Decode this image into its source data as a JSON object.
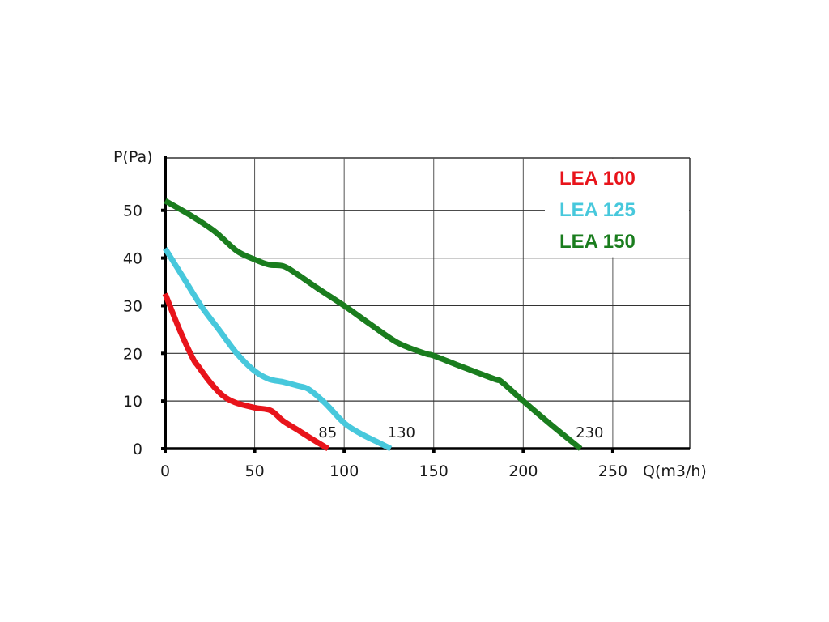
{
  "chart_data": {
    "type": "line",
    "title": "",
    "xlabel": "Q(m3/h)",
    "ylabel": "P(Pa)",
    "xlim": [
      0,
      293
    ],
    "ylim": [
      0,
      61
    ],
    "x_ticks": [
      0,
      50,
      100,
      150,
      200,
      250
    ],
    "x_tick_labels": [
      "0",
      "50",
      "100",
      "150",
      "200",
      "250"
    ],
    "y_ticks": [
      0,
      10,
      20,
      30,
      40,
      50
    ],
    "y_tick_labels": [
      "0",
      "10",
      "20",
      "30",
      "40",
      "50"
    ],
    "grid": true,
    "legend_position": "top-right",
    "series": [
      {
        "name": "LEA 100",
        "color": "#e8141b",
        "end_label": "85",
        "points": [
          [
            0,
            32.5
          ],
          [
            8,
            25
          ],
          [
            15.4,
            19
          ],
          [
            18.5,
            17.3
          ],
          [
            25,
            14
          ],
          [
            32,
            11.2
          ],
          [
            39,
            9.7
          ],
          [
            50,
            8.6
          ],
          [
            59,
            8
          ],
          [
            66,
            5.8
          ],
          [
            75,
            3.7
          ],
          [
            83,
            1.8
          ],
          [
            91,
            0
          ]
        ]
      },
      {
        "name": "LEA 125",
        "color": "#47c8dc",
        "end_label": "130",
        "points": [
          [
            0,
            42
          ],
          [
            10,
            36
          ],
          [
            20,
            30
          ],
          [
            30,
            25
          ],
          [
            40,
            20
          ],
          [
            50,
            16.3
          ],
          [
            58,
            14.6
          ],
          [
            66,
            14
          ],
          [
            74,
            13.2
          ],
          [
            80,
            12.5
          ],
          [
            89,
            9.7
          ],
          [
            100,
            5.4
          ],
          [
            109,
            3.2
          ],
          [
            118,
            1.5
          ],
          [
            126,
            0
          ]
        ]
      },
      {
        "name": "LEA 150",
        "color": "#1a7d1e",
        "end_label": "230",
        "points": [
          [
            0,
            52
          ],
          [
            14,
            49
          ],
          [
            27.6,
            45.6
          ],
          [
            40,
            41.5
          ],
          [
            50,
            39.7
          ],
          [
            58,
            38.6
          ],
          [
            66,
            38.3
          ],
          [
            73,
            36.8
          ],
          [
            85,
            33.7
          ],
          [
            100,
            30
          ],
          [
            115,
            26
          ],
          [
            130,
            22.2
          ],
          [
            145,
            20
          ],
          [
            150,
            19.5
          ],
          [
            165,
            17.3
          ],
          [
            184,
            14.6
          ],
          [
            188,
            14
          ],
          [
            200,
            10
          ],
          [
            215,
            5.2
          ],
          [
            232,
            0
          ]
        ]
      }
    ]
  }
}
